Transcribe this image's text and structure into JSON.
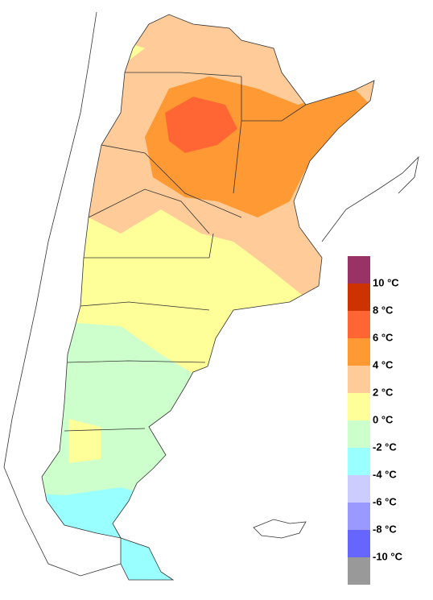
{
  "legend": {
    "items": [
      {
        "color": "#993366"
      },
      {
        "label": "10 °C",
        "color": "#cc3300"
      },
      {
        "label": "8 °C",
        "color": "#ff6633"
      },
      {
        "label": "6 °C",
        "color": "#ff9933"
      },
      {
        "label": "4 °C",
        "color": "#ffcc99"
      },
      {
        "label": "2 °C",
        "color": "#ffff99"
      },
      {
        "label": "0 °C",
        "color": "#ccffcc"
      },
      {
        "label": "-2 °C",
        "color": "#99ffff"
      },
      {
        "label": "-4 °C",
        "color": "#ccccff"
      },
      {
        "label": "-6 °C",
        "color": "#9999ff"
      },
      {
        "label": "-8 °C",
        "color": "#6666ff"
      },
      {
        "label": "-10 °C",
        "color": "#999999"
      }
    ]
  }
}
